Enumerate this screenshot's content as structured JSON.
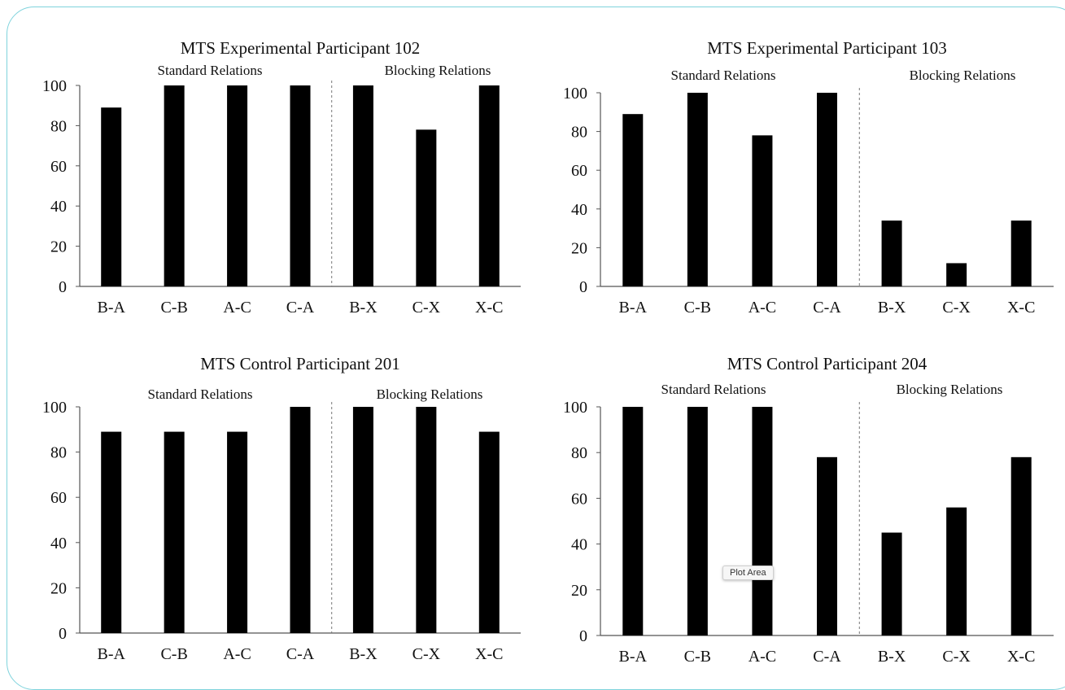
{
  "chart_data": [
    {
      "type": "bar",
      "title": "MTS Experimental Participant 102",
      "group_labels": [
        "Standard Relations",
        "Blocking Relations"
      ],
      "categories": [
        "B-A",
        "C-B",
        "A-C",
        "C-A",
        "B-X",
        "C-X",
        "X-C"
      ],
      "values": [
        89,
        100,
        100,
        100,
        100,
        78,
        100
      ],
      "ylim": [
        0,
        100
      ],
      "yticks": [
        0,
        20,
        40,
        60,
        80,
        100
      ],
      "grid": false,
      "bar_color": "#000000"
    },
    {
      "type": "bar",
      "title": "MTS Experimental Participant 103",
      "group_labels": [
        "Standard Relations",
        "Blocking Relations"
      ],
      "categories": [
        "B-A",
        "C-B",
        "A-C",
        "C-A",
        "B-X",
        "C-X",
        "X-C"
      ],
      "values": [
        89,
        100,
        78,
        100,
        34,
        12,
        34
      ],
      "ylim": [
        0,
        100
      ],
      "yticks": [
        0,
        20,
        40,
        60,
        80,
        100
      ],
      "grid": false,
      "bar_color": "#000000"
    },
    {
      "type": "bar",
      "title": "MTS Control Participant 201",
      "group_labels": [
        "Standard Relations",
        "Blocking Relations"
      ],
      "categories": [
        "B-A",
        "C-B",
        "A-C",
        "C-A",
        "B-X",
        "C-X",
        "X-C"
      ],
      "values": [
        89,
        89,
        89,
        100,
        100,
        100,
        89
      ],
      "ylim": [
        0,
        100
      ],
      "yticks": [
        0,
        20,
        40,
        60,
        80,
        100
      ],
      "grid": false,
      "bar_color": "#000000"
    },
    {
      "type": "bar",
      "title": "MTS Control Participant 204",
      "group_labels": [
        "Standard Relations",
        "Blocking Relations"
      ],
      "categories": [
        "B-A",
        "C-B",
        "A-C",
        "C-A",
        "B-X",
        "C-X",
        "X-C"
      ],
      "values": [
        100,
        100,
        100,
        78,
        45,
        56,
        78
      ],
      "ylim": [
        0,
        100
      ],
      "yticks": [
        0,
        20,
        40,
        60,
        80,
        100
      ],
      "grid": false,
      "bar_color": "#000000"
    }
  ],
  "tooltip": {
    "text": "Plot Area"
  },
  "frame_color": "#7fd3dc"
}
